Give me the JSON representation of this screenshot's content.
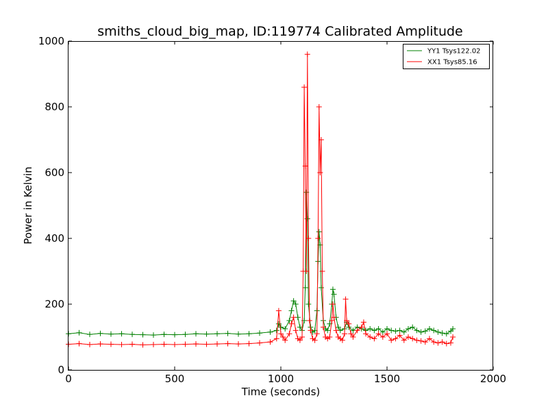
{
  "chart_data": {
    "type": "line",
    "title": "smiths_cloud_big_map, ID:119774 Calibrated Amplitude",
    "xlabel": "Time (seconds)",
    "ylabel": "Power in Kelvin",
    "xlim": [
      0,
      2000
    ],
    "ylim": [
      0,
      1000
    ],
    "xticks": [
      0,
      500,
      1000,
      1500,
      2000
    ],
    "yticks": [
      0,
      200,
      400,
      600,
      800,
      1000
    ],
    "grid": false,
    "legend_position": "top-right",
    "marker": "+",
    "series": [
      {
        "name": "YY1 Tsys122.02",
        "color": "#008000",
        "x": [
          0,
          50,
          100,
          150,
          200,
          250,
          300,
          350,
          400,
          450,
          500,
          550,
          600,
          650,
          700,
          750,
          800,
          850,
          900,
          950,
          980,
          990,
          1000,
          1020,
          1040,
          1050,
          1060,
          1070,
          1080,
          1090,
          1100,
          1110,
          1115,
          1120,
          1125,
          1130,
          1140,
          1150,
          1160,
          1170,
          1175,
          1180,
          1185,
          1190,
          1200,
          1210,
          1220,
          1230,
          1240,
          1245,
          1250,
          1260,
          1270,
          1280,
          1300,
          1310,
          1320,
          1340,
          1360,
          1380,
          1400,
          1420,
          1440,
          1460,
          1480,
          1500,
          1520,
          1540,
          1560,
          1580,
          1600,
          1620,
          1640,
          1660,
          1680,
          1700,
          1720,
          1740,
          1760,
          1780,
          1800,
          1810
        ],
        "y": [
          110,
          113,
          108,
          111,
          109,
          110,
          108,
          107,
          106,
          108,
          107,
          108,
          110,
          109,
          110,
          111,
          109,
          110,
          112,
          115,
          120,
          140,
          130,
          125,
          150,
          180,
          210,
          200,
          160,
          130,
          120,
          150,
          250,
          540,
          460,
          200,
          130,
          115,
          120,
          180,
          330,
          420,
          380,
          250,
          150,
          125,
          120,
          140,
          200,
          245,
          230,
          160,
          130,
          120,
          125,
          145,
          130,
          120,
          130,
          125,
          120,
          125,
          120,
          125,
          115,
          125,
          120,
          118,
          120,
          115,
          125,
          130,
          120,
          115,
          118,
          125,
          120,
          115,
          112,
          110,
          118,
          125
        ]
      },
      {
        "name": "XX1 Tsys85.16",
        "color": "#ff0000",
        "x": [
          0,
          50,
          100,
          150,
          200,
          250,
          300,
          350,
          400,
          450,
          500,
          550,
          600,
          650,
          700,
          750,
          800,
          850,
          900,
          950,
          980,
          990,
          1000,
          1010,
          1020,
          1040,
          1050,
          1060,
          1070,
          1080,
          1090,
          1100,
          1105,
          1110,
          1115,
          1120,
          1125,
          1130,
          1135,
          1140,
          1150,
          1160,
          1170,
          1175,
          1180,
          1185,
          1190,
          1195,
          1200,
          1210,
          1220,
          1230,
          1240,
          1245,
          1250,
          1260,
          1270,
          1280,
          1290,
          1300,
          1305,
          1310,
          1320,
          1330,
          1340,
          1360,
          1380,
          1390,
          1400,
          1420,
          1440,
          1460,
          1480,
          1500,
          1520,
          1540,
          1560,
          1580,
          1600,
          1620,
          1640,
          1660,
          1680,
          1700,
          1720,
          1740,
          1760,
          1780,
          1800,
          1810
        ],
        "y": [
          78,
          80,
          77,
          79,
          78,
          77,
          78,
          76,
          77,
          78,
          77,
          78,
          79,
          78,
          79,
          80,
          79,
          80,
          82,
          85,
          95,
          180,
          110,
          100,
          90,
          110,
          140,
          160,
          120,
          95,
          90,
          100,
          300,
          860,
          620,
          300,
          960,
          400,
          150,
          120,
          95,
          90,
          110,
          400,
          800,
          600,
          700,
          300,
          130,
          100,
          95,
          100,
          150,
          200,
          160,
          120,
          100,
          95,
          90,
          110,
          215,
          150,
          140,
          110,
          100,
          120,
          130,
          145,
          110,
          100,
          95,
          110,
          100,
          110,
          90,
          95,
          105,
          90,
          100,
          95,
          90,
          88,
          85,
          95,
          85,
          82,
          85,
          80,
          82,
          100
        ]
      }
    ]
  }
}
